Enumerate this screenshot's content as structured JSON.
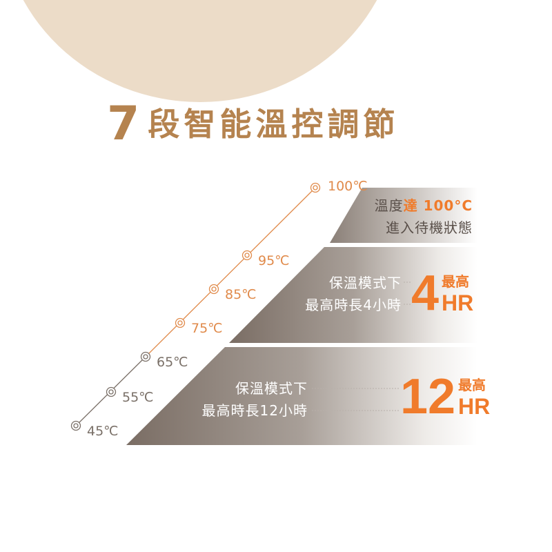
{
  "title": {
    "number": "7",
    "text": "段智能溫控調節"
  },
  "colors": {
    "accent": "#f07b2b",
    "title": "#b5834f",
    "beige": "#ecdcc8",
    "line_gray": "#7a7068",
    "band_dark": "#7a6d64"
  },
  "levels": [
    {
      "label": "45℃",
      "color": "gray"
    },
    {
      "label": "55℃",
      "color": "gray"
    },
    {
      "label": "65℃",
      "color": "gray"
    },
    {
      "label": "75℃",
      "color": "orange"
    },
    {
      "label": "85℃",
      "color": "orange"
    },
    {
      "label": "95℃",
      "color": "orange"
    },
    {
      "label": "100℃",
      "color": "orange"
    }
  ],
  "bands": {
    "top": {
      "line1_prefix": "溫度",
      "line1_highlight": "達 100°C",
      "line2": "進入待機狀態"
    },
    "middle": {
      "line1": "保溫模式下",
      "line2": "最高時長4小時",
      "big": "4",
      "small_top": "最高",
      "small_bottom": "HR"
    },
    "bottom": {
      "line1": "保溫模式下",
      "line2": "最高時長12小時",
      "big": "12",
      "small_top": "最高",
      "small_bottom": "HR"
    }
  }
}
